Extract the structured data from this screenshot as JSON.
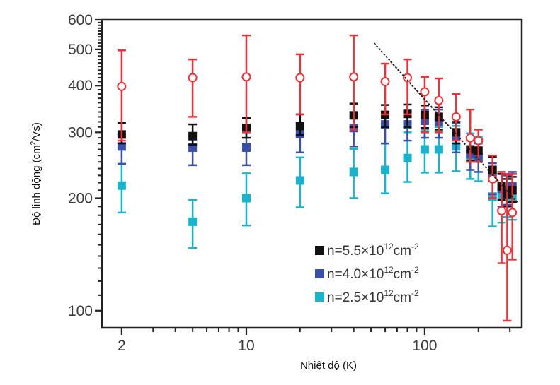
{
  "chart_data": {
    "type": "scatter",
    "title": "",
    "xlabel": "Nhiệt độ (K)",
    "ylabel_main": "Độ linh động (cm",
    "ylabel_sup": "2",
    "ylabel_tail": "/Vs)",
    "xscale": "log",
    "yscale": "log",
    "xlim": [
      1.55,
      350
    ],
    "ylim": [
      90,
      600
    ],
    "x_ticks": [
      {
        "value": 2,
        "label": "2"
      },
      {
        "value": 10,
        "label": "10"
      },
      {
        "value": 100,
        "label": "100"
      }
    ],
    "x_minor_ticks": [
      3,
      4,
      5,
      6,
      7,
      8,
      9,
      20,
      30,
      40,
      50,
      60,
      70,
      80,
      90,
      200,
      300
    ],
    "y_ticks": [
      {
        "value": 100,
        "label": "100"
      },
      {
        "value": 200,
        "label": "200"
      },
      {
        "value": 300,
        "label": "300"
      },
      {
        "value": 400,
        "label": "400"
      },
      {
        "value": 500,
        "label": "500"
      },
      {
        "value": 600,
        "label": "600"
      }
    ],
    "y_minor_ticks": [
      110,
      120,
      130,
      140,
      150,
      160,
      170,
      180,
      190,
      210,
      220,
      230,
      240,
      250,
      260,
      270,
      280,
      290,
      310,
      320,
      330,
      340,
      350,
      360,
      370,
      380,
      390,
      410,
      420,
      430,
      440,
      450,
      460,
      470,
      480,
      490,
      510,
      520,
      530,
      540,
      550,
      560,
      570,
      580,
      590
    ],
    "grid": false,
    "legend_position": "bottom-right",
    "legend": [
      {
        "name": "n=5.5×10",
        "sup": "12",
        "unit": "cm",
        "unit_sup": "-2",
        "color": "#111111"
      },
      {
        "name": "n=4.0×10",
        "sup": "12",
        "unit": "cm",
        "unit_sup": "-2",
        "color": "#3a4fa8"
      },
      {
        "name": "n=2.5×10",
        "sup": "12",
        "unit": "cm",
        "unit_sup": "-2",
        "color": "#1bb3cc"
      }
    ],
    "series": [
      {
        "name": "open-circle (red)",
        "color": "#e8333a",
        "marker": "circle-open",
        "points": [
          {
            "x": 2,
            "y": 398,
            "lo": 285,
            "hi": 497
          },
          {
            "x": 5,
            "y": 420,
            "lo": 330,
            "hi": 470
          },
          {
            "x": 10,
            "y": 422,
            "lo": 300,
            "hi": 545
          },
          {
            "x": 20,
            "y": 420,
            "lo": 335,
            "hi": 485
          },
          {
            "x": 40,
            "y": 422,
            "lo": 305,
            "hi": 545
          },
          {
            "x": 60,
            "y": 410,
            "lo": 335,
            "hi": 458
          },
          {
            "x": 80,
            "y": 420,
            "lo": 335,
            "hi": 470
          },
          {
            "x": 100,
            "y": 385,
            "lo": 300,
            "hi": 422
          },
          {
            "x": 120,
            "y": 365,
            "lo": 300,
            "hi": 418
          },
          {
            "x": 150,
            "y": 330,
            "lo": 285,
            "hi": 380
          },
          {
            "x": 180,
            "y": 290,
            "lo": 250,
            "hi": 345
          },
          {
            "x": 200,
            "y": 285,
            "lo": 250,
            "hi": 305
          },
          {
            "x": 240,
            "y": 225,
            "lo": 200,
            "hi": 260
          },
          {
            "x": 270,
            "y": 185,
            "lo": 134,
            "hi": 235
          },
          {
            "x": 290,
            "y": 145,
            "lo": 94,
            "hi": 232
          },
          {
            "x": 310,
            "y": 183,
            "lo": 137,
            "hi": 232
          }
        ]
      },
      {
        "name": "n=5.5×10^12 cm^-2",
        "color": "#111111",
        "marker": "square",
        "points": [
          {
            "x": 2,
            "y": 296,
            "lo": 280,
            "hi": 318
          },
          {
            "x": 5,
            "y": 293,
            "lo": 278,
            "hi": 315
          },
          {
            "x": 10,
            "y": 308,
            "lo": 290,
            "hi": 328
          },
          {
            "x": 20,
            "y": 312,
            "lo": 295,
            "hi": 335
          },
          {
            "x": 40,
            "y": 333,
            "lo": 310,
            "hi": 358
          },
          {
            "x": 60,
            "y": 334,
            "lo": 310,
            "hi": 355
          },
          {
            "x": 80,
            "y": 336,
            "lo": 310,
            "hi": 356
          },
          {
            "x": 100,
            "y": 334,
            "lo": 308,
            "hi": 354
          },
          {
            "x": 120,
            "y": 330,
            "lo": 305,
            "hi": 350
          },
          {
            "x": 150,
            "y": 300,
            "lo": 280,
            "hi": 320
          },
          {
            "x": 180,
            "y": 270,
            "lo": 252,
            "hi": 292
          },
          {
            "x": 200,
            "y": 268,
            "lo": 250,
            "hi": 288
          },
          {
            "x": 240,
            "y": 238,
            "lo": 222,
            "hi": 258
          },
          {
            "x": 270,
            "y": 215,
            "lo": 198,
            "hi": 232
          },
          {
            "x": 290,
            "y": 205,
            "lo": 190,
            "hi": 225
          },
          {
            "x": 310,
            "y": 210,
            "lo": 195,
            "hi": 228
          }
        ]
      },
      {
        "name": "n=4.0×10^12 cm^-2",
        "color": "#3a4fa8",
        "marker": "square",
        "points": [
          {
            "x": 2,
            "y": 275,
            "lo": 247,
            "hi": 296
          },
          {
            "x": 5,
            "y": 273,
            "lo": 245,
            "hi": 293
          },
          {
            "x": 10,
            "y": 273,
            "lo": 245,
            "hi": 300
          },
          {
            "x": 20,
            "y": 297,
            "lo": 265,
            "hi": 318
          },
          {
            "x": 40,
            "y": 308,
            "lo": 275,
            "hi": 333
          },
          {
            "x": 60,
            "y": 315,
            "lo": 280,
            "hi": 340
          },
          {
            "x": 80,
            "y": 315,
            "lo": 285,
            "hi": 342
          },
          {
            "x": 100,
            "y": 322,
            "lo": 290,
            "hi": 345
          },
          {
            "x": 120,
            "y": 320,
            "lo": 290,
            "hi": 345
          },
          {
            "x": 150,
            "y": 292,
            "lo": 265,
            "hi": 318
          },
          {
            "x": 180,
            "y": 262,
            "lo": 238,
            "hi": 285
          },
          {
            "x": 200,
            "y": 258,
            "lo": 235,
            "hi": 280
          },
          {
            "x": 240,
            "y": 228,
            "lo": 205,
            "hi": 248
          },
          {
            "x": 270,
            "y": 212,
            "lo": 190,
            "hi": 232
          },
          {
            "x": 290,
            "y": 210,
            "lo": 192,
            "hi": 230
          },
          {
            "x": 310,
            "y": 215,
            "lo": 195,
            "hi": 235
          }
        ]
      },
      {
        "name": "n=2.5×10^12 cm^-2",
        "color": "#1bb3cc",
        "marker": "square",
        "points": [
          {
            "x": 2,
            "y": 216,
            "lo": 183,
            "hi": 247
          },
          {
            "x": 5,
            "y": 173,
            "lo": 147,
            "hi": 198
          },
          {
            "x": 10,
            "y": 200,
            "lo": 169,
            "hi": 233
          },
          {
            "x": 20,
            "y": 223,
            "lo": 189,
            "hi": 257
          },
          {
            "x": 40,
            "y": 235,
            "lo": 200,
            "hi": 271
          },
          {
            "x": 60,
            "y": 238,
            "lo": 206,
            "hi": 280
          },
          {
            "x": 80,
            "y": 256,
            "lo": 221,
            "hi": 300
          },
          {
            "x": 100,
            "y": 270,
            "lo": 234,
            "hi": 305
          },
          {
            "x": 120,
            "y": 270,
            "lo": 234,
            "hi": 310
          },
          {
            "x": 150,
            "y": 275,
            "lo": 236,
            "hi": 312
          },
          {
            "x": 180,
            "y": 258,
            "lo": 225,
            "hi": 298
          },
          {
            "x": 200,
            "y": 256,
            "lo": 222,
            "hi": 292
          },
          {
            "x": 240,
            "y": 202,
            "lo": 168,
            "hi": 238
          },
          {
            "x": 270,
            "y": 203,
            "lo": 172,
            "hi": 235
          },
          {
            "x": 290,
            "y": 205,
            "lo": 178,
            "hi": 232
          },
          {
            "x": 310,
            "y": 202,
            "lo": 175,
            "hi": 232
          }
        ]
      }
    ],
    "fit_line": {
      "style": "dashed",
      "color": "#222222",
      "from": {
        "x": 52,
        "y": 520
      },
      "to": {
        "x": 330,
        "y": 195
      },
      "slope_loglog": -0.53
    }
  }
}
